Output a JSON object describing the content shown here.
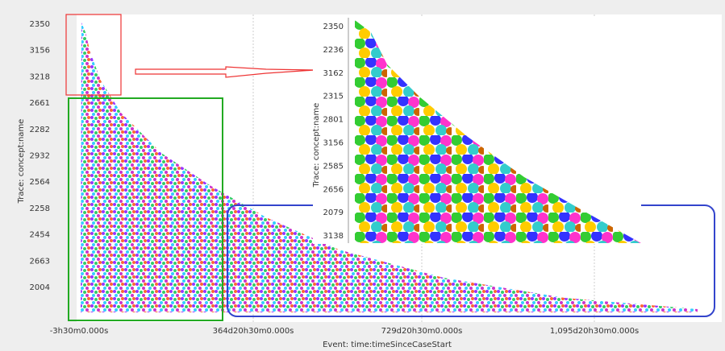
{
  "main_plot": {
    "y_axis_title": "Trace: concept:name",
    "y_labels": [
      "2350",
      "3156",
      "3218",
      "2661",
      "2282",
      "2932",
      "2564",
      "2258",
      "2454",
      "2663",
      "2004"
    ],
    "x_labels": [
      "-3h30m0.000s",
      "364d20h30m0.000s",
      "729d20h30m0.000s",
      "1,095d20h30m0.000s"
    ],
    "x_axis_title": "Event: time:timeSinceCaseStart"
  },
  "inset": {
    "y_axis_title": "Trace: concept:name",
    "y_labels": [
      "2350",
      "2236",
      "3162",
      "2315",
      "2801",
      "3156",
      "2585",
      "2656",
      "2079",
      "3138"
    ]
  }
}
